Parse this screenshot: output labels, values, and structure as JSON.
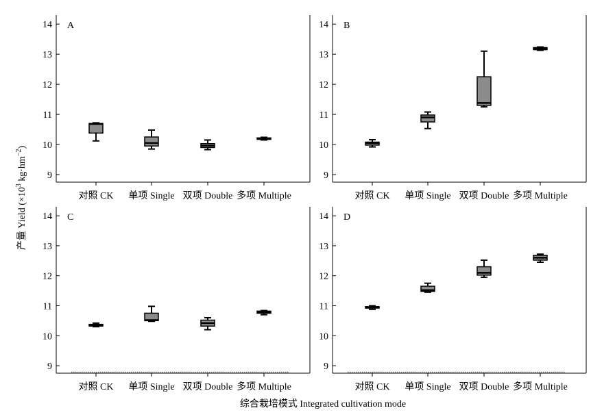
{
  "chart_data": [
    {
      "type": "box",
      "panel_label": "A",
      "categories": [
        "对照 CK",
        "单项 Single",
        "双项 Double",
        "多项 Multiple"
      ],
      "yticks": [
        9,
        10,
        11,
        12,
        13,
        14
      ],
      "ylim": [
        8.75,
        14.3
      ],
      "boxes": [
        {
          "min": 10.12,
          "q1": 10.38,
          "median": 10.68,
          "q3": 10.7,
          "max": 10.72
        },
        {
          "min": 9.85,
          "q1": 9.95,
          "median": 10.05,
          "q3": 10.25,
          "max": 10.48
        },
        {
          "min": 9.83,
          "q1": 9.9,
          "median": 9.96,
          "q3": 10.03,
          "max": 10.15
        },
        {
          "min": 10.15,
          "q1": 10.17,
          "median": 10.19,
          "q3": 10.22,
          "max": 10.24
        }
      ]
    },
    {
      "type": "box",
      "panel_label": "B",
      "categories": [
        "对照 CK",
        "单项 Single",
        "双项 Double",
        "多项 Multiple"
      ],
      "yticks": [
        9,
        10,
        11,
        12,
        13,
        14
      ],
      "ylim": [
        8.75,
        14.3
      ],
      "boxes": [
        {
          "min": 9.92,
          "q1": 9.98,
          "median": 10.05,
          "q3": 10.08,
          "max": 10.16
        },
        {
          "min": 10.53,
          "q1": 10.75,
          "median": 10.9,
          "q3": 10.98,
          "max": 11.08
        },
        {
          "min": 11.25,
          "q1": 11.3,
          "median": 11.38,
          "q3": 12.25,
          "max": 13.1
        },
        {
          "min": 13.13,
          "q1": 13.15,
          "median": 13.18,
          "q3": 13.22,
          "max": 13.24
        }
      ]
    },
    {
      "type": "box",
      "panel_label": "C",
      "categories": [
        "对照 CK",
        "单项 Single",
        "双项 Double",
        "多项 Multiple"
      ],
      "yticks": [
        9,
        10,
        11,
        12,
        13,
        14
      ],
      "ylim": [
        8.75,
        14.3
      ],
      "boxes": [
        {
          "min": 10.3,
          "q1": 10.32,
          "median": 10.35,
          "q3": 10.38,
          "max": 10.42
        },
        {
          "min": 10.48,
          "q1": 10.5,
          "median": 10.52,
          "q3": 10.75,
          "max": 10.98
        },
        {
          "min": 10.2,
          "q1": 10.32,
          "median": 10.42,
          "q3": 10.52,
          "max": 10.6
        },
        {
          "min": 10.7,
          "q1": 10.75,
          "median": 10.78,
          "q3": 10.82,
          "max": 10.84
        }
      ]
    },
    {
      "type": "box",
      "panel_label": "D",
      "categories": [
        "对照 CK",
        "单项 Single",
        "双项 Double",
        "多项 Multiple"
      ],
      "yticks": [
        9,
        10,
        11,
        12,
        13,
        14
      ],
      "ylim": [
        8.75,
        14.3
      ],
      "boxes": [
        {
          "min": 10.88,
          "q1": 10.92,
          "median": 10.95,
          "q3": 10.97,
          "max": 11.0
        },
        {
          "min": 11.45,
          "q1": 11.48,
          "median": 11.52,
          "q3": 11.65,
          "max": 11.75
        },
        {
          "min": 11.95,
          "q1": 12.02,
          "median": 12.1,
          "q3": 12.3,
          "max": 12.52
        },
        {
          "min": 12.45,
          "q1": 12.52,
          "median": 12.6,
          "q3": 12.68,
          "max": 12.72
        }
      ]
    }
  ],
  "ylabel_main": "产量 Yield (×10",
  "ylabel_sup1": "3",
  "ylabel_mid": " kg·hm",
  "ylabel_sup2": "−2",
  "ylabel_end": ")",
  "xlabel": "综合栽培模式 Integrated cultivation mode",
  "colors": {
    "box_fill": "#8c8c8c",
    "stroke": "#000000",
    "dotted_baseline": "#555555"
  }
}
